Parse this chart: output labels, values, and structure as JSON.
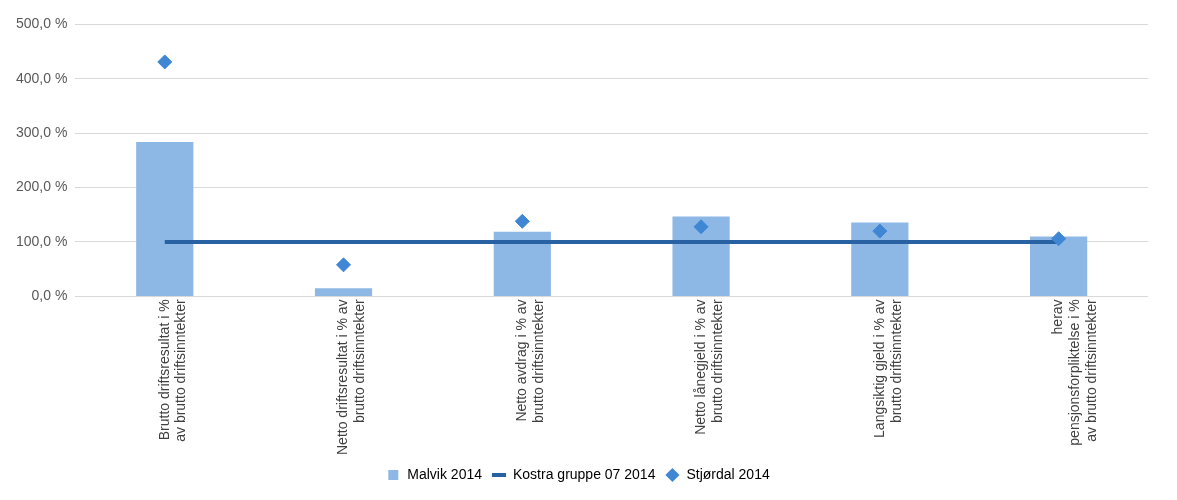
{
  "chart_data": {
    "type": "bar",
    "categories": [
      "Brutto driftsresultat i %\nav brutto driftsinntekter",
      "Netto driftsresultat i % av\nbrutto driftsinntekter",
      "Netto avdrag i % av\nbrutto driftsinntekter",
      "Netto lånegjeld i % av\nbrutto driftsinntekter",
      "Langsiktig gjeld i % av\nbrutto driftsinntekter",
      "herav\npensjonsforpliktelse i %\nav brutto driftsinntekter"
    ],
    "series": [
      {
        "name": "Malvik 2014",
        "color": "#8db7e4",
        "values": [
          284,
          15,
          119,
          147,
          136,
          110
        ]
      },
      {
        "name": "Kostra gruppe 07 2014",
        "type": "line",
        "marker": "none",
        "color": "#2962a3",
        "values": [
          100,
          100,
          100,
          100,
          100,
          100
        ]
      },
      {
        "name": "Stjørdal 2014",
        "type": "scatter",
        "marker": "diamond",
        "color": "#3f87d4",
        "values": [
          431,
          58,
          138,
          128,
          120,
          106
        ]
      }
    ],
    "ylim": [
      0,
      500
    ],
    "yticks": [
      {
        "value": 0,
        "label": "0,0 %"
      },
      {
        "value": 100,
        "label": "100,0 %"
      },
      {
        "value": 200,
        "label": "200,0 %"
      },
      {
        "value": 300,
        "label": "300,0 %"
      },
      {
        "value": 400,
        "label": "400,0 %"
      },
      {
        "value": 500,
        "label": "500,0 %"
      }
    ],
    "grid": "y",
    "legend": "bottom"
  }
}
